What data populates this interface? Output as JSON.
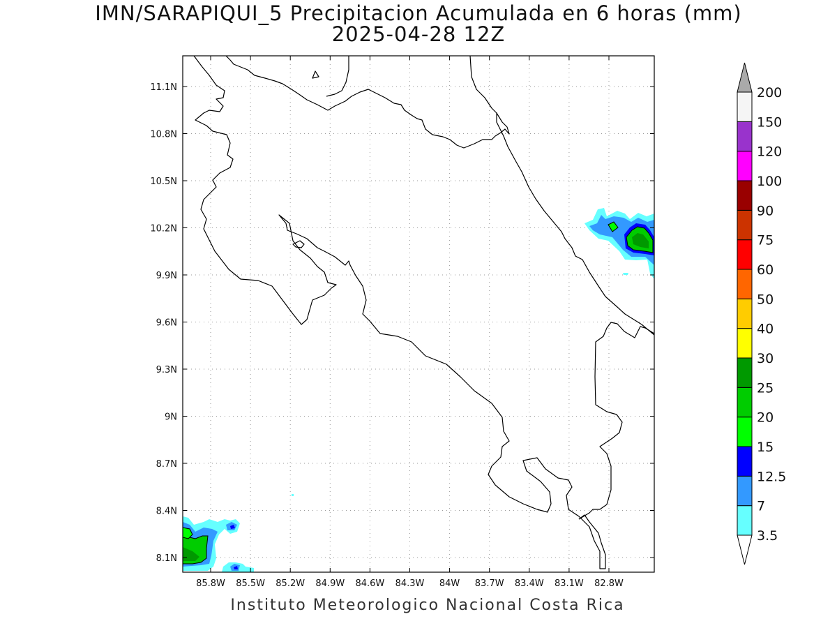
{
  "title": "IMN/SARAPIQUI_5 Precipitacion Acumulada en 6 horas (mm)",
  "subtitle": "2025-04-28 12Z",
  "footer": "Instituto Meteorologico Nacional Costa Rica",
  "map": {
    "lon_range": [
      -86.0,
      -82.48
    ],
    "lat_range": [
      8.0,
      11.3
    ],
    "lat_ticks": [
      "11.1N",
      "10.8N",
      "10.5N",
      "10.2N",
      "9.9N",
      "9.6N",
      "9.3N",
      "9N",
      "8.7N",
      "8.4N",
      "8.1N"
    ],
    "lon_ticks": [
      "85.8W",
      "85.5W",
      "85.2W",
      "84.9W",
      "84.6W",
      "84.3W",
      "84W",
      "83.7W",
      "83.4W",
      "83.1W",
      "82.8W"
    ],
    "grid": "dotted"
  },
  "colorbar": {
    "levels": [
      "3.5",
      "7",
      "12.5",
      "15",
      "20",
      "25",
      "30",
      "40",
      "50",
      "60",
      "75",
      "90",
      "100",
      "120",
      "150",
      "200"
    ],
    "colors": [
      "#ffffff",
      "#66ffff",
      "#3399ff",
      "#0000ff",
      "#00ff00",
      "#00cc00",
      "#009900",
      "#ffff00",
      "#ffcc00",
      "#ff6600",
      "#ff0000",
      "#cc3300",
      "#990000",
      "#ff00ff",
      "#9933cc",
      "#f5f5f5",
      "#aaaaaa"
    ]
  }
}
